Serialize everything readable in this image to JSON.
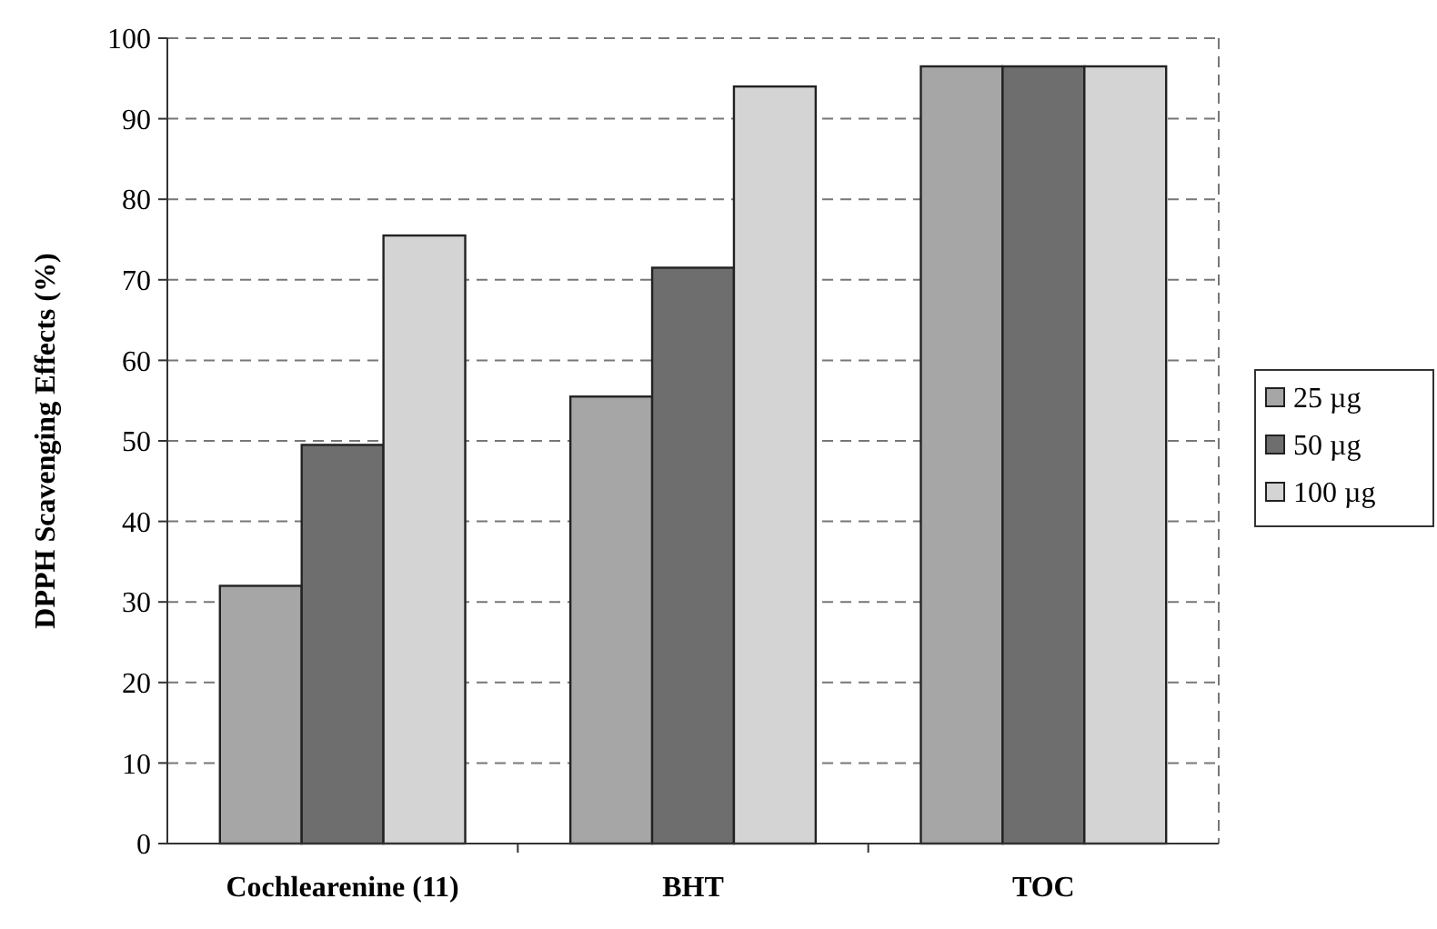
{
  "chart_data": {
    "type": "bar",
    "ylabel": "DPPH Scavenging Effects (%)",
    "categories": [
      "Cochlearenine (11)",
      "BHT",
      "TOC"
    ],
    "series": [
      {
        "name": "25 µg",
        "color": "#a6a6a6",
        "values": [
          32,
          55.5,
          96.5
        ]
      },
      {
        "name": "50 µg",
        "color": "#6e6e6e",
        "values": [
          49.5,
          71.5,
          96.5
        ]
      },
      {
        "name": "100 µg",
        "color": "#d4d4d4",
        "values": [
          75.5,
          94,
          96.5
        ]
      }
    ],
    "ylim": [
      0,
      100
    ],
    "yticks": [
      0,
      10,
      20,
      30,
      40,
      50,
      60,
      70,
      80,
      90,
      100
    ],
    "grid": "y",
    "legend": "right"
  }
}
